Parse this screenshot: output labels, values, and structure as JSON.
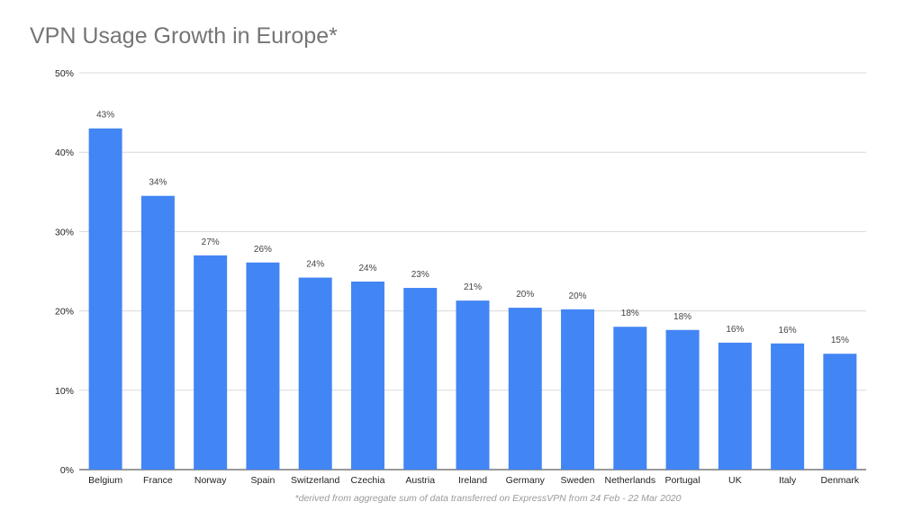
{
  "chart_data": {
    "type": "bar",
    "title": "VPN Usage Growth in Europe*",
    "footnote": "*derived from aggregate sum of data transferred on ExpressVPN from 24 Feb - 22 Mar 2020",
    "xlabel": "",
    "ylabel": "",
    "ylim": [
      0,
      50
    ],
    "yticks": [
      "0%",
      "10%",
      "20%",
      "30%",
      "40%",
      "50%"
    ],
    "grid": true,
    "categories": [
      "Belgium",
      "France",
      "Norway",
      "Spain",
      "Switzerland",
      "Czechia",
      "Austria",
      "Ireland",
      "Germany",
      "Sweden",
      "Netherlands",
      "Portugal",
      "UK",
      "Italy",
      "Denmark"
    ],
    "values": [
      43.0,
      34.5,
      27.0,
      26.1,
      24.2,
      23.7,
      22.9,
      21.3,
      20.4,
      20.2,
      18.0,
      17.6,
      16.0,
      15.9,
      14.6
    ],
    "labels": [
      "43%",
      "34%",
      "27%",
      "26%",
      "24%",
      "24%",
      "23%",
      "21%",
      "20%",
      "20%",
      "18%",
      "18%",
      "16%",
      "16%",
      "15%"
    ],
    "color": "#4285f4"
  }
}
